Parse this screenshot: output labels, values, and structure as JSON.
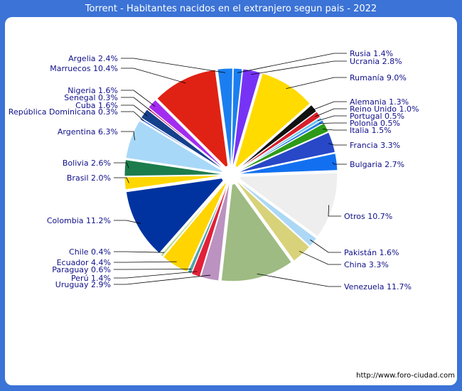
{
  "title": "Torrent - Habitantes nacidos en el extranjero segun pais - 2022",
  "source_url": "http://www.foro-ciudad.com",
  "chart_data": {
    "type": "pie",
    "title": "Torrent - Habitantes nacidos en el extranjero segun pais - 2022",
    "unit": "%",
    "slices": [
      {
        "label": "Rusia",
        "value": 1.4,
        "color": "#1c7ff0"
      },
      {
        "label": "Ucrania",
        "value": 2.8,
        "color": "#7733f5"
      },
      {
        "label": "Rumanía",
        "value": 9.0,
        "color": "#ffdb00"
      },
      {
        "label": "Alemania",
        "value": 1.3,
        "color": "#111111"
      },
      {
        "label": "Reino Unido",
        "value": 1.0,
        "color": "#d8202c"
      },
      {
        "label": "Portugal",
        "value": 0.5,
        "color": "#6bc6f0"
      },
      {
        "label": "Polonia",
        "value": 0.5,
        "color": "#2a7ee8"
      },
      {
        "label": "Italia",
        "value": 1.5,
        "color": "#2e9a18"
      },
      {
        "label": "Francia",
        "value": 3.3,
        "color": "#2848c8"
      },
      {
        "label": "Bulgaria",
        "value": 2.7,
        "color": "#1270f0"
      },
      {
        "label": "Otros",
        "value": 10.7,
        "color": "#eeeeee"
      },
      {
        "label": "Pakistán",
        "value": 1.6,
        "color": "#acd8f6"
      },
      {
        "label": "China",
        "value": 3.3,
        "color": "#d8d27a"
      },
      {
        "label": "Venezuela",
        "value": 11.7,
        "color": "#9dbb82"
      },
      {
        "label": "Uruguay",
        "value": 2.9,
        "color": "#bb92c0"
      },
      {
        "label": "Perú",
        "value": 1.4,
        "color": "#e22038"
      },
      {
        "label": "Paraguay",
        "value": 0.6,
        "color": "#4aa6a8"
      },
      {
        "label": "Ecuador",
        "value": 4.4,
        "color": "#ffd400"
      },
      {
        "label": "Chile",
        "value": 0.4,
        "color": "#b6d888"
      },
      {
        "label": "Colombia",
        "value": 11.2,
        "color": "#0033a0"
      },
      {
        "label": "Brasil",
        "value": 2.0,
        "color": "#ffd700"
      },
      {
        "label": "Bolivia",
        "value": 2.6,
        "color": "#1d7c4c"
      },
      {
        "label": "Argentina",
        "value": 6.3,
        "color": "#a8d8f8"
      },
      {
        "label": "República Dominicana",
        "value": 0.3,
        "color": "#3c6ae0"
      },
      {
        "label": "Cuba",
        "value": 1.6,
        "color": "#15408c"
      },
      {
        "label": "Senegal",
        "value": 0.3,
        "color": "#cc2f7a"
      },
      {
        "label": "Nigeria",
        "value": 1.6,
        "color": "#a32cf0"
      },
      {
        "label": "Marruecos",
        "value": 10.4,
        "color": "#e02214"
      },
      {
        "label": "Argelia",
        "value": 2.4,
        "color": "#1b7ef0"
      }
    ]
  }
}
